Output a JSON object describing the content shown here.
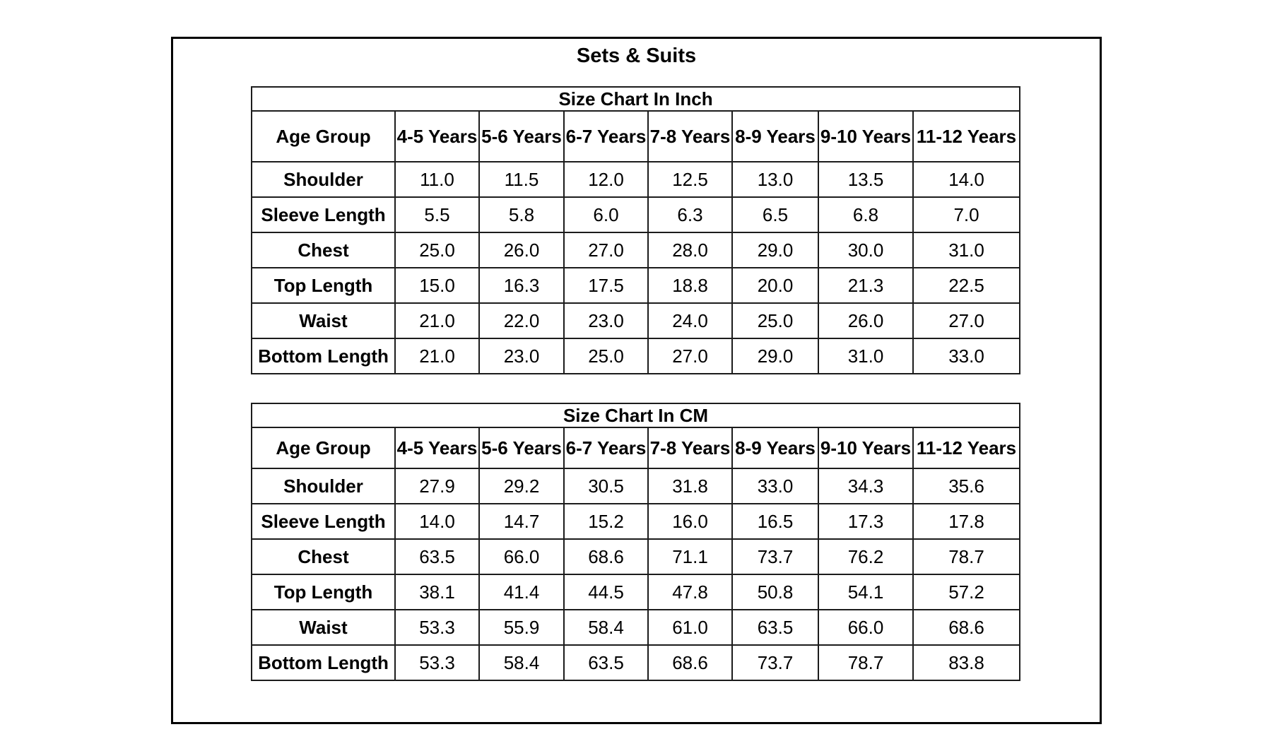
{
  "page": {
    "title": "Sets & Suits"
  },
  "tables": [
    {
      "title": "Size Chart In Inch",
      "columns": [
        "Age Group",
        "4-5 Years",
        "5-6 Years",
        "6-7 Years",
        "7-8 Years",
        "8-9 Years",
        "9-10 Years",
        "11-12 Years"
      ],
      "rows": [
        {
          "label": "Shoulder",
          "values": [
            "11.0",
            "11.5",
            "12.0",
            "12.5",
            "13.0",
            "13.5",
            "14.0"
          ]
        },
        {
          "label": "Sleeve Length",
          "values": [
            "5.5",
            "5.8",
            "6.0",
            "6.3",
            "6.5",
            "6.8",
            "7.0"
          ]
        },
        {
          "label": "Chest",
          "values": [
            "25.0",
            "26.0",
            "27.0",
            "28.0",
            "29.0",
            "30.0",
            "31.0"
          ]
        },
        {
          "label": "Top Length",
          "values": [
            "15.0",
            "16.3",
            "17.5",
            "18.8",
            "20.0",
            "21.3",
            "22.5"
          ]
        },
        {
          "label": "Waist",
          "values": [
            "21.0",
            "22.0",
            "23.0",
            "24.0",
            "25.0",
            "26.0",
            "27.0"
          ]
        },
        {
          "label": "Bottom Length",
          "values": [
            "21.0",
            "23.0",
            "25.0",
            "27.0",
            "29.0",
            "31.0",
            "33.0"
          ]
        }
      ]
    },
    {
      "title": "Size Chart In CM",
      "columns": [
        "Age Group",
        "4-5 Years",
        "5-6 Years",
        "6-7 Years",
        "7-8 Years",
        "8-9 Years",
        "9-10 Years",
        "11-12 Years"
      ],
      "rows": [
        {
          "label": "Shoulder",
          "values": [
            "27.9",
            "29.2",
            "30.5",
            "31.8",
            "33.0",
            "34.3",
            "35.6"
          ]
        },
        {
          "label": "Sleeve Length",
          "values": [
            "14.0",
            "14.7",
            "15.2",
            "16.0",
            "16.5",
            "17.3",
            "17.8"
          ]
        },
        {
          "label": "Chest",
          "values": [
            "63.5",
            "66.0",
            "68.6",
            "71.1",
            "73.7",
            "76.2",
            "78.7"
          ]
        },
        {
          "label": "Top Length",
          "values": [
            "38.1",
            "41.4",
            "44.5",
            "47.8",
            "50.8",
            "54.1",
            "57.2"
          ]
        },
        {
          "label": "Waist",
          "values": [
            "53.3",
            "55.9",
            "58.4",
            "61.0",
            "63.5",
            "66.0",
            "68.6"
          ]
        },
        {
          "label": "Bottom Length",
          "values": [
            "53.3",
            "58.4",
            "63.5",
            "68.6",
            "73.7",
            "78.7",
            "83.8"
          ]
        }
      ]
    }
  ]
}
